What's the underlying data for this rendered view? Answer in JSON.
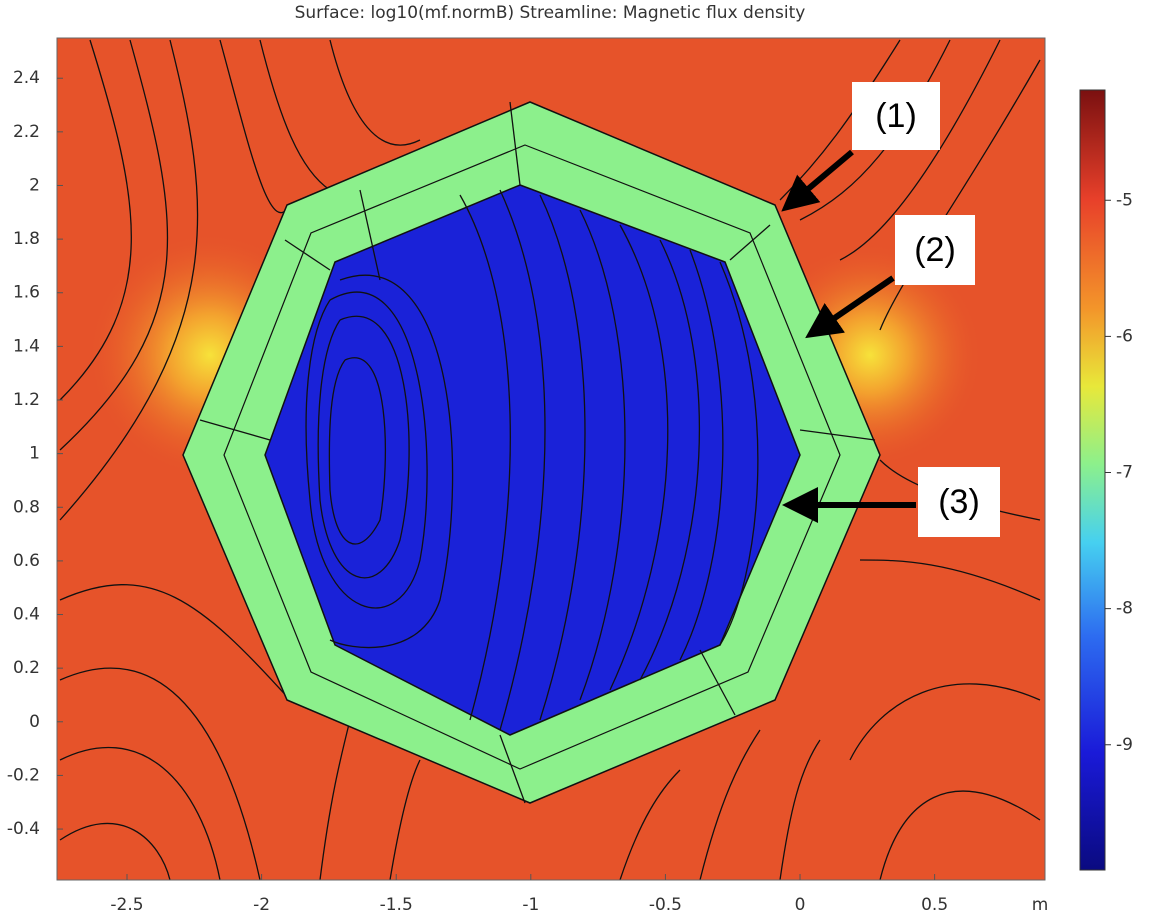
{
  "chart_data": {
    "type": "surface",
    "title": "Surface: log10(mf.normB)  Streamline: Magnetic flux density",
    "x_unit": "m",
    "xlim": [
      -2.76,
      0.91
    ],
    "ylim": [
      -0.59,
      2.55
    ],
    "xticks": [
      -2.5,
      -2,
      -1.5,
      -1,
      -0.5,
      0,
      0.5
    ],
    "yticks": [
      -0.4,
      -0.2,
      0,
      0.2,
      0.4,
      0.6,
      0.8,
      1,
      1.2,
      1.4,
      1.6,
      1.8,
      2,
      2.2,
      2.4
    ],
    "colorbar": {
      "lim": [
        -9.92,
        -4.19
      ],
      "ticks": [
        -9,
        -8,
        -7,
        -6,
        -5
      ]
    },
    "annotations": [
      "(1)",
      "(2)",
      "(3)"
    ]
  }
}
